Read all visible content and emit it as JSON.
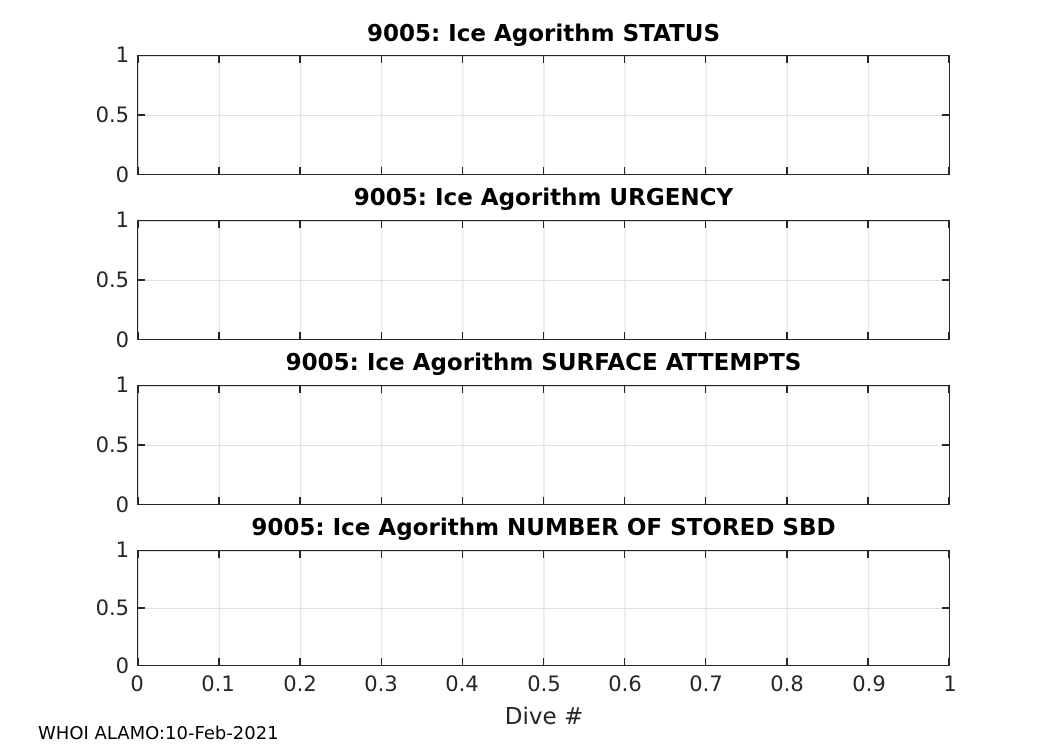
{
  "figure": {
    "footer": "WHOI ALAMO:10-Feb-2021"
  },
  "colors": {
    "axis": "#262626",
    "grid": "#dfdfdf",
    "title": "#000000",
    "background": "#ffffff"
  },
  "axes": {
    "xlabel": "Dive #",
    "x_tick_labels": [
      "0",
      "0.1",
      "0.2",
      "0.3",
      "0.4",
      "0.5",
      "0.6",
      "0.7",
      "0.8",
      "0.9",
      "1"
    ],
    "y_tick_labels_top_to_bottom": [
      "1",
      "0.5",
      "0"
    ]
  },
  "chart_data": [
    {
      "type": "line",
      "title": "9005: Ice Agorithm STATUS",
      "xlabel": "",
      "ylabel": "",
      "xlim": [
        0,
        1
      ],
      "ylim": [
        0,
        1
      ],
      "x_ticks": [
        0,
        0.1,
        0.2,
        0.3,
        0.4,
        0.5,
        0.6,
        0.7,
        0.8,
        0.9,
        1
      ],
      "y_ticks": [
        0,
        0.5,
        1
      ],
      "grid": true,
      "series": []
    },
    {
      "type": "line",
      "title": "9005: Ice Agorithm URGENCY",
      "xlabel": "",
      "ylabel": "",
      "xlim": [
        0,
        1
      ],
      "ylim": [
        0,
        1
      ],
      "x_ticks": [
        0,
        0.1,
        0.2,
        0.3,
        0.4,
        0.5,
        0.6,
        0.7,
        0.8,
        0.9,
        1
      ],
      "y_ticks": [
        0,
        0.5,
        1
      ],
      "grid": true,
      "series": []
    },
    {
      "type": "line",
      "title": "9005: Ice Agorithm SURFACE ATTEMPTS",
      "xlabel": "",
      "ylabel": "",
      "xlim": [
        0,
        1
      ],
      "ylim": [
        0,
        1
      ],
      "x_ticks": [
        0,
        0.1,
        0.2,
        0.3,
        0.4,
        0.5,
        0.6,
        0.7,
        0.8,
        0.9,
        1
      ],
      "y_ticks": [
        0,
        0.5,
        1
      ],
      "grid": true,
      "series": []
    },
    {
      "type": "line",
      "title": "9005: Ice Agorithm NUMBER OF STORED SBD",
      "xlabel": "Dive #",
      "ylabel": "",
      "xlim": [
        0,
        1
      ],
      "ylim": [
        0,
        1
      ],
      "x_ticks": [
        0,
        0.1,
        0.2,
        0.3,
        0.4,
        0.5,
        0.6,
        0.7,
        0.8,
        0.9,
        1
      ],
      "y_ticks": [
        0,
        0.5,
        1
      ],
      "grid": true,
      "series": []
    }
  ]
}
